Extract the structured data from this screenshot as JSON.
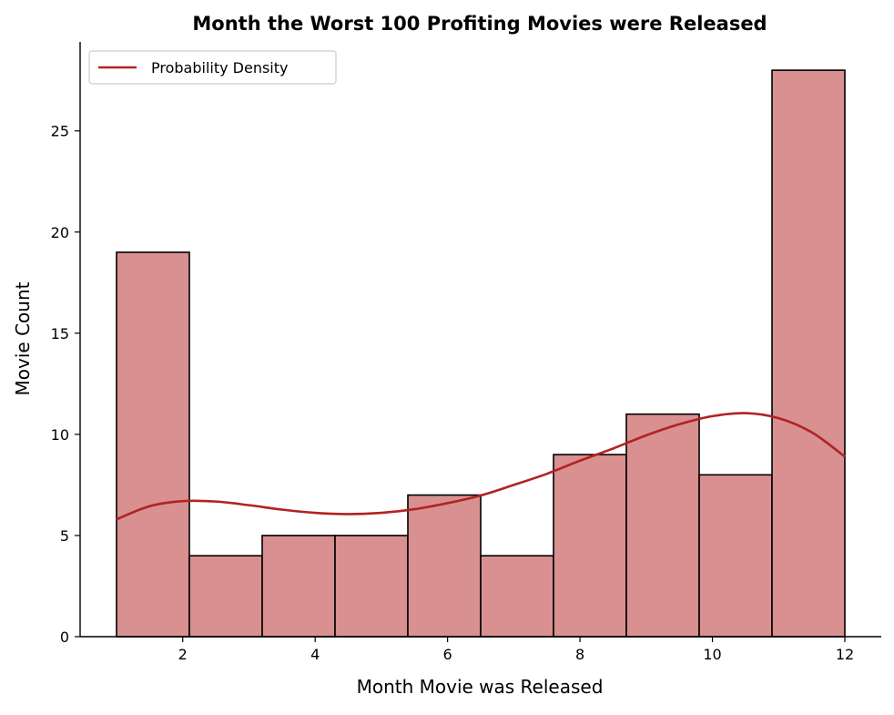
{
  "chart_data": {
    "type": "bar",
    "subtype": "histogram",
    "title": "Month the Worst 100 Profiting Movies were Released",
    "xlabel": "Month Movie was Released",
    "ylabel": "Movie Count",
    "xlim": [
      0.45,
      12.55
    ],
    "ylim": [
      0,
      29.4
    ],
    "xticks": [
      2,
      4,
      6,
      8,
      10,
      12
    ],
    "yticks": [
      0,
      5,
      10,
      15,
      20,
      25
    ],
    "bins": [
      {
        "start": 1.0,
        "end": 2.1,
        "count": 19
      },
      {
        "start": 2.1,
        "end": 3.2,
        "count": 4
      },
      {
        "start": 3.2,
        "end": 4.3,
        "count": 5
      },
      {
        "start": 4.3,
        "end": 5.4,
        "count": 5
      },
      {
        "start": 5.4,
        "end": 6.5,
        "count": 7
      },
      {
        "start": 6.5,
        "end": 7.6,
        "count": 4
      },
      {
        "start": 7.6,
        "end": 8.7,
        "count": 9
      },
      {
        "start": 8.7,
        "end": 9.8,
        "count": 11
      },
      {
        "start": 9.8,
        "end": 10.9,
        "count": 8
      },
      {
        "start": 10.9,
        "end": 12.0,
        "count": 28
      }
    ],
    "bar_color": "#d89090",
    "bar_edge_color": "#000000",
    "series": [
      {
        "name": "Probability Density",
        "type": "line",
        "color": "#b22222",
        "x": [
          1.0,
          1.5,
          2.0,
          2.5,
          3.0,
          3.5,
          4.0,
          4.5,
          5.0,
          5.5,
          6.0,
          6.5,
          7.0,
          7.5,
          8.0,
          8.5,
          9.0,
          9.5,
          10.0,
          10.5,
          11.0,
          11.5,
          12.0
        ],
        "values": [
          5.8,
          6.45,
          6.7,
          6.68,
          6.5,
          6.28,
          6.12,
          6.06,
          6.12,
          6.3,
          6.6,
          6.98,
          7.5,
          8.05,
          8.7,
          9.3,
          9.95,
          10.5,
          10.9,
          11.05,
          10.8,
          10.1,
          8.9
        ]
      }
    ],
    "legend": {
      "position": "upper-left"
    },
    "grid": false
  }
}
